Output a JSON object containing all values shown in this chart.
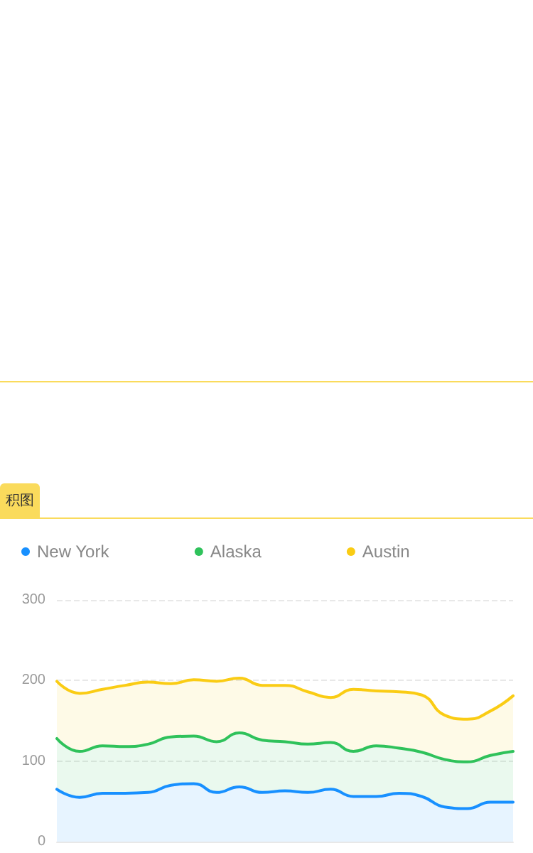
{
  "chart_data": {
    "type": "area",
    "stacked": true,
    "annotations": [
      "积图"
    ],
    "categories": [
      null,
      null,
      null,
      null,
      null,
      null,
      null,
      null,
      null,
      null,
      null,
      null,
      null,
      null,
      null,
      null,
      null,
      null,
      null,
      null,
      null
    ],
    "series": [
      {
        "name": "New York",
        "color": "#1890ff",
        "values": [
          65,
          55,
          60,
          60,
          61,
          70,
          72,
          61,
          68,
          61,
          63,
          61,
          65,
          56,
          56,
          60,
          56,
          43,
          41,
          49,
          49
        ]
      },
      {
        "name": "Alaska",
        "color": "#2fc25b",
        "values": [
          63,
          57,
          59,
          58,
          60,
          60,
          59,
          63,
          67,
          65,
          61,
          60,
          58,
          56,
          63,
          56,
          55,
          59,
          58,
          58,
          63
        ]
      },
      {
        "name": "Austin",
        "color": "#facc14",
        "values": [
          71,
          72,
          70,
          76,
          77,
          66,
          70,
          75,
          68,
          68,
          70,
          65,
          56,
          77,
          68,
          70,
          71,
          55,
          53,
          55,
          69
        ]
      }
    ],
    "ylim": [
      0,
      300
    ],
    "yticks": [
      0,
      100,
      200,
      300
    ],
    "grid": "y",
    "legend": "top",
    "marker": "none",
    "line_style": "solid"
  }
}
